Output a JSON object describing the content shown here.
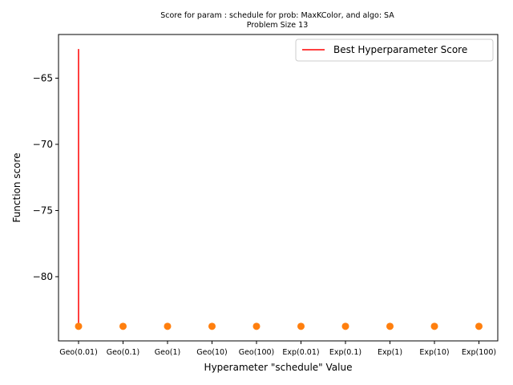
{
  "chart_data": {
    "type": "scatter",
    "title_line1": "Score for param : schedule for prob: MaxKColor, and algo: SA",
    "title_line2": "Problem Size 13",
    "xlabel": "Hyperameter \"schedule\" Value",
    "ylabel": "Function score",
    "categories": [
      "Geo(0.01)",
      "Geo(0.1)",
      "Geo(1)",
      "Geo(10)",
      "Geo(100)",
      "Exp(0.01)",
      "Exp(0.1)",
      "Exp(1)",
      "Exp(10)",
      "Exp(100)"
    ],
    "points": [
      -83.75,
      -83.75,
      -83.75,
      -83.75,
      -83.75,
      -83.75,
      -83.75,
      -83.75,
      -83.75,
      -83.75
    ],
    "best_line": {
      "category": "Geo(0.01)",
      "y_low": -83.75,
      "y_high": -62.8
    },
    "yticks": [
      -80,
      -75,
      -70,
      -65
    ],
    "ytick_labels": [
      "−80",
      "−75",
      "−70",
      "−65"
    ],
    "ylim": [
      -84.85,
      -61.7
    ],
    "legend": {
      "label": "Best Hyperparameter Score",
      "placement": "top-right"
    },
    "grid": false,
    "point_color": "#ff7f0e",
    "line_color": "#ff0000"
  }
}
